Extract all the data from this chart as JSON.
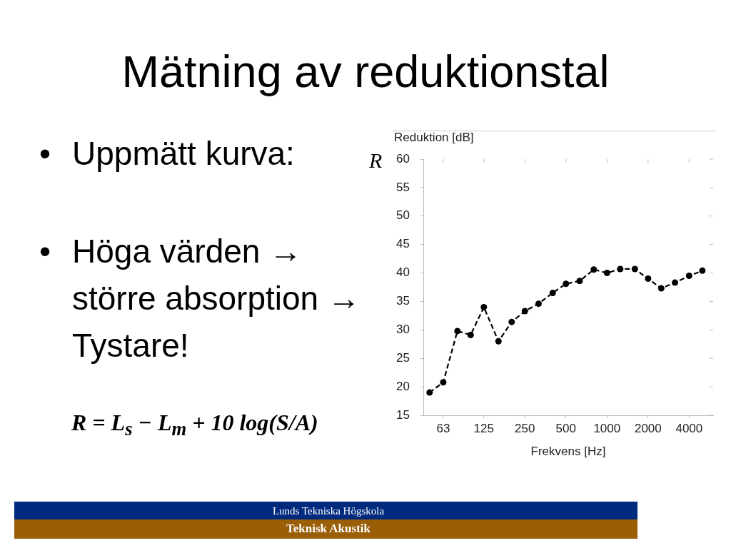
{
  "chart_data": {
    "type": "line",
    "title": "Mätning av reduktionstal",
    "ylabel": "Reduktion [dB]",
    "xlabel": "Frekvens [Hz]",
    "x": [
      50,
      63,
      80,
      100,
      125,
      160,
      200,
      250,
      315,
      400,
      500,
      630,
      800,
      1000,
      1250,
      1600,
      2000,
      2500,
      3150,
      4000,
      5000
    ],
    "series": [
      {
        "color": "#000000",
        "values": [
          19.0,
          20.8,
          29.8,
          29.1,
          34.0,
          28.0,
          31.4,
          33.3,
          34.6,
          36.5,
          38.1,
          38.6,
          40.6,
          40.0,
          40.7,
          40.7,
          39.0,
          37.3,
          38.3,
          39.5,
          40.4
        ]
      }
    ],
    "log": "x",
    "xlim": [
      45,
      6000
    ],
    "xticks": [
      63,
      125,
      250,
      500,
      1000,
      2000,
      4000
    ],
    "ylim": [
      15,
      60
    ],
    "yticks": [
      15,
      20,
      25,
      30,
      35,
      40,
      45,
      50,
      55,
      60
    ],
    "grid": false,
    "legend": false,
    "marker": "circle",
    "line_style": "dashed",
    "annotations": [
      "•",
      "Uppmätt kurva:",
      "•",
      "Höga värden →\nstörre absorption →\nTystare!",
      "R = L$_{s}$ − L$_{m}$ + 10 log(S/A)",
      "R",
      "Lunds Tekniska Högskola",
      "Teknisk Akustik"
    ]
  }
}
